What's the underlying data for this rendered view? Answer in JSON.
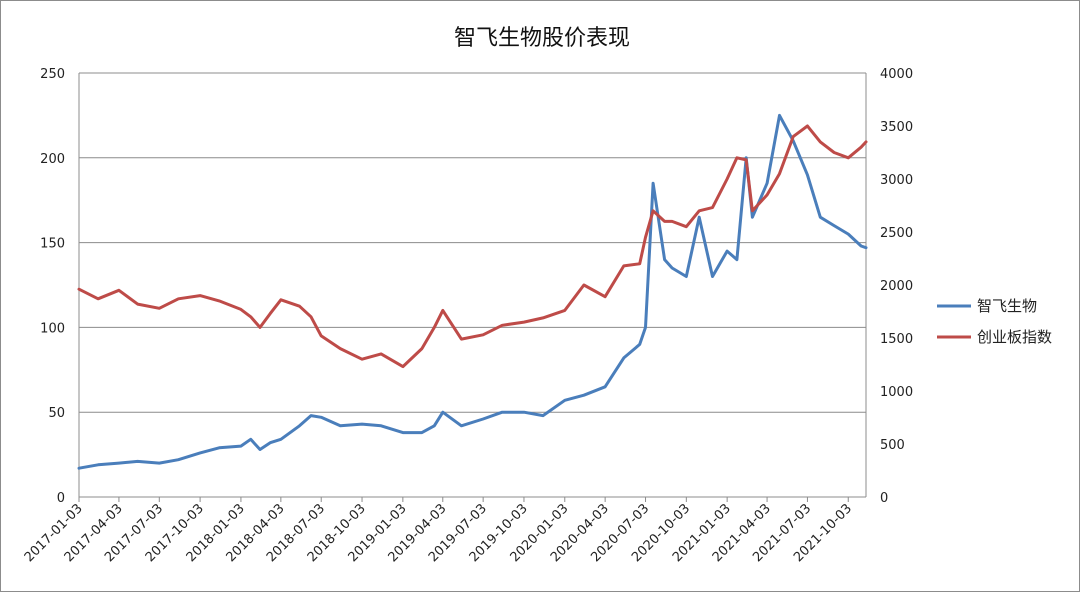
{
  "chart_data": {
    "type": "line",
    "title": "智飞生物股价表现",
    "xlabel": "",
    "ylabel": "",
    "x_tick_labels": [
      "2017-01-03",
      "2017-04-03",
      "2017-07-03",
      "2017-10-03",
      "2018-01-03",
      "2018-04-03",
      "2018-07-03",
      "2018-10-03",
      "2019-01-03",
      "2019-04-03",
      "2019-07-03",
      "2019-10-03",
      "2020-01-03",
      "2020-04-03",
      "2020-07-03",
      "2020-10-03",
      "2021-01-03",
      "2021-04-03",
      "2021-07-03",
      "2021-10-03"
    ],
    "y_left": {
      "min": 0,
      "max": 250,
      "ticks": [
        "0",
        "50",
        "100",
        "150",
        "200",
        "250"
      ]
    },
    "y_right": {
      "min": 0,
      "max": 4000,
      "ticks": [
        "0",
        "500",
        "1000",
        "1500",
        "2000",
        "2500",
        "3000",
        "3500",
        "4000"
      ]
    },
    "grid": "horizontal",
    "legend_position": "right",
    "x": [
      "2017-01-03",
      "2017-02-15",
      "2017-04-03",
      "2017-05-15",
      "2017-07-03",
      "2017-08-15",
      "2017-10-03",
      "2017-11-15",
      "2018-01-03",
      "2018-01-25",
      "2018-02-15",
      "2018-03-10",
      "2018-04-03",
      "2018-05-15",
      "2018-06-10",
      "2018-07-03",
      "2018-08-15",
      "2018-10-03",
      "2018-11-15",
      "2019-01-03",
      "2019-02-15",
      "2019-03-15",
      "2019-04-03",
      "2019-05-15",
      "2019-07-03",
      "2019-08-15",
      "2019-10-03",
      "2019-11-15",
      "2020-01-03",
      "2020-02-15",
      "2020-04-03",
      "2020-05-15",
      "2020-06-20",
      "2020-07-03",
      "2020-07-20",
      "2020-08-15",
      "2020-09-01",
      "2020-10-03",
      "2020-11-01",
      "2020-12-01",
      "2021-01-03",
      "2021-01-25",
      "2021-02-15",
      "2021-03-01",
      "2021-04-03",
      "2021-05-01",
      "2021-06-01",
      "2021-07-03",
      "2021-08-01",
      "2021-09-01",
      "2021-10-03",
      "2021-11-01",
      "2021-11-12"
    ],
    "series": [
      {
        "name": "智飞生物",
        "axis": "left",
        "color": "#4a7ebb",
        "values": [
          17,
          19,
          20,
          21,
          20,
          22,
          26,
          29,
          30,
          34,
          28,
          32,
          34,
          42,
          48,
          47,
          42,
          43,
          42,
          38,
          38,
          42,
          50,
          42,
          46,
          50,
          50,
          48,
          57,
          60,
          65,
          82,
          90,
          100,
          185,
          140,
          135,
          130,
          165,
          130,
          145,
          140,
          200,
          165,
          185,
          225,
          210,
          190,
          165,
          160,
          155,
          148,
          147
        ]
      },
      {
        "name": "创业板指数",
        "axis": "right",
        "color": "#be4b48",
        "values": [
          1960,
          1870,
          1950,
          1820,
          1780,
          1870,
          1900,
          1850,
          1770,
          1700,
          1600,
          1730,
          1860,
          1800,
          1700,
          1520,
          1400,
          1300,
          1350,
          1230,
          1400,
          1600,
          1760,
          1490,
          1530,
          1620,
          1650,
          1690,
          1760,
          2000,
          1890,
          2180,
          2200,
          2450,
          2700,
          2600,
          2600,
          2550,
          2700,
          2730,
          3000,
          3200,
          3180,
          2700,
          2850,
          3050,
          3400,
          3500,
          3350,
          3250,
          3200,
          3300,
          3350
        ]
      }
    ]
  }
}
